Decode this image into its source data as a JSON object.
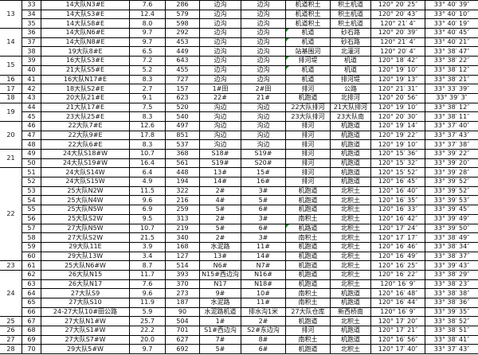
{
  "groups": [
    {
      "id": "13",
      "rows": [
        [
          "33",
          "14大队N3#E",
          "7.6",
          "286",
          "边沟",
          "边沟",
          "机道积土",
          "积土机道",
          "120° 20′ 25″",
          "33° 40′ 39″"
        ],
        [
          "34",
          "14大队S3#E",
          "12.4",
          "579",
          "边沟",
          "边沟",
          "机道积土",
          "积土机道",
          "120° 20′ 43″",
          "33° 40′ 10″"
        ],
        [
          "35",
          "14大队S8#E",
          "8.0",
          "598",
          "边沟",
          "边沟",
          "机道积土",
          "积土机道",
          "120° 21′ 4″",
          "33° 40′ 19″"
        ]
      ]
    },
    {
      "id": "14",
      "rows": [
        [
          "36",
          "14大队N6#E",
          "9.7",
          "292",
          "边沟",
          "边沟",
          "机道",
          "砂石路",
          "120° 20′ 39″",
          "33° 40′ 45″"
        ],
        [
          "37",
          "14大队N8#E",
          "9.7",
          "453",
          "边沟",
          "边沟",
          "机道",
          "砂石路",
          "120° 21′ 4″",
          "33° 40′ 21″"
        ],
        [
          "38",
          "19大队8#E",
          "6.5",
          "449",
          "边沟",
          "边沟",
          "站基围河",
          "北灌河",
          "120° 20′ 4″",
          "33° 38′ 47″"
        ]
      ]
    },
    {
      "id": "15",
      "rows": [
        [
          "39",
          "16大队S3#E",
          "7.2",
          "643",
          "边沟",
          "边沟",
          "排河堤",
          "机道",
          "120° 18′ 42″",
          "33° 38′ 22″"
        ],
        [
          "40",
          "21大队S5#E",
          "5.2",
          "455",
          "边沟",
          "边沟",
          "机道",
          "机道",
          "120° 19′ 10″",
          "33° 38′ 12″"
        ]
      ]
    },
    {
      "id": "16",
      "rows": [
        [
          "41",
          "16大队N17#E",
          "8.3",
          "727",
          "边沟",
          "边沟",
          "机道",
          "排河堤",
          "120° 19′ 13″",
          "33° 38′ 21″"
        ]
      ]
    },
    {
      "id": "17",
      "rows": [
        [
          "42",
          "18大队S2#E",
          "2.7",
          "157",
          "1#田",
          "2#田",
          "排河",
          "公路",
          "120° 21′ 31″",
          "33° 33′ 39″"
        ]
      ]
    },
    {
      "id": "18",
      "rows": [
        [
          "43",
          "20大队21#E",
          "9.1",
          "623",
          "22#",
          "21#",
          "机跑道",
          "北排河",
          "120° 20′ 56″",
          "33° 39′ 3″"
        ]
      ]
    },
    {
      "id": "19",
      "rows": [
        [
          "44",
          "21大队17#E",
          "7.5",
          "520",
          "沟边",
          "沟边",
          "22大队排河",
          "21大队排河",
          "120° 19′ 10″",
          "33° 38′ 12″"
        ],
        [
          "45",
          "23大队25#E",
          "8.3",
          "540",
          "沟边",
          "沟边",
          "23大队排河",
          "23大队南",
          "120° 20′ 30″",
          "33° 38′ 11″"
        ]
      ]
    },
    {
      "id": "20",
      "rows": [
        [
          "46",
          "22大队7#E",
          "12.6",
          "497",
          "沟边",
          "沟边",
          "排河",
          "机跑道",
          "120° 19′ 14″",
          "33° 37′ 40″"
        ],
        [
          "47",
          "22大队9#E",
          "17.8",
          "851",
          "沟边",
          "沟边",
          "排河",
          "机跑道",
          "120° 19′ 22″",
          "33° 37′ 43″"
        ],
        [
          "48",
          "22大队6#E",
          "8.3",
          "537",
          "沟边",
          "沟边",
          "排河",
          "机跑道",
          "120° 19′ 10″",
          "33° 37′ 38″"
        ]
      ]
    },
    {
      "id": "21",
      "rows": [
        [
          "49",
          "24大队S18#W",
          "10.7",
          "368",
          "S18#",
          "S19#",
          "排河",
          "机跑道",
          "120° 15′ 36″",
          "33° 39′ 22″"
        ],
        [
          "50",
          "24大队S19#W",
          "16.4",
          "561",
          "S19#",
          "S20#",
          "排河",
          "机跑道",
          "120° 15′ 32″",
          "33° 39′ 20″"
        ]
      ]
    },
    {
      "id": "22",
      "rows": [
        [
          "51",
          "24大队S14W",
          "6.4",
          "448",
          "13#",
          "15#",
          "排河",
          "机跑道",
          "120° 15′ 52″",
          "33° 39′ 28″"
        ],
        [
          "52",
          "24大队S15W",
          "4.9",
          "194",
          "14#",
          "16#",
          "排河",
          "机跑道",
          "120° 16′ 45″",
          "33° 39′ 52″"
        ],
        [
          "53",
          "25大队N2W",
          "11.5",
          "322",
          "2#",
          "3#",
          "机跑道",
          "北积土",
          "120° 16′ 40″",
          "33° 39′ 52″"
        ],
        [
          "54",
          "25大队N4W",
          "9.6",
          "216",
          "4#",
          "5#",
          "机跑道",
          "北积土",
          "120° 16′ 35″",
          "33° 39′ 53″"
        ],
        [
          "55",
          "25大队N5W",
          "6.9",
          "259",
          "5#",
          "6#",
          "机跑道",
          "北积土",
          "120° 16′ 33″",
          "33° 39′ 45″"
        ],
        [
          "56",
          "25大队S2W",
          "9.5",
          "313",
          "2#",
          "3#",
          "南积土",
          "北积土",
          "120° 16′ 42″",
          "33° 39′ 49″"
        ],
        [
          "57",
          "27大队N5W",
          "10.7",
          "219",
          "5#",
          "6#",
          "机路道",
          "北积土",
          "120° 17′ 24″",
          "33° 39′ 50″"
        ],
        [
          "58",
          "27大队S2W",
          "21.5",
          "340",
          "2#",
          "3#",
          "南积土",
          "北积土",
          "120° 17′ 17″",
          "33° 38′ 49″"
        ],
        [
          "59",
          "29大队11E",
          "3.9",
          "168",
          "水泥路",
          "11#",
          "机跑道",
          "北积土",
          "120° 16′ 46″",
          "33° 38′ 34″"
        ],
        [
          "60",
          "29大队13W",
          "3.4",
          "127",
          "13#",
          "14#",
          "机跑道",
          "北积土",
          "120° 16′ 49″",
          "33° 38′ 37″"
        ]
      ]
    },
    {
      "id": "23",
      "rows": [
        [
          "61",
          "25大队N6#W",
          "8.7",
          "514",
          "N6#",
          "N7#",
          "机跑道",
          "北积土",
          "120° 16′ 25″",
          "33° 39′ 43″"
        ]
      ]
    },
    {
      "id": "24",
      "rows": [
        [
          "62",
          "26大队N15",
          "11.7",
          "393",
          "N15#西边沟",
          "N16#",
          "机跑道",
          "北积土",
          "120° 16′ 22″",
          "33° 38′ 29″"
        ],
        [
          "63",
          "26大队N17",
          "7.6",
          "370",
          "N17",
          "N18#",
          "机跑道",
          "北积土",
          "120° 16′ 9″",
          "33° 38′ 23″"
        ],
        [
          "64",
          "27大队S9",
          "9.6",
          "273",
          "9#",
          "10#",
          "南积土",
          "机跑道",
          "120° 16′ 48″",
          "33° 38′ 38″"
        ],
        [
          "65",
          "27大队S10",
          "11.9",
          "187",
          "水泥路",
          "11#",
          "南积土",
          "机跑道",
          "120° 16′ 44″",
          "33° 38′ 36″"
        ],
        [
          "66",
          "24-27大队10#田公路",
          "5.9",
          "90",
          "水泥路机道",
          "排水沟1米",
          "27大队仓库",
          "新西桥南",
          "120° 16′ 9″",
          "33° 39′ 35″"
        ]
      ]
    },
    {
      "id": "25",
      "rows": [
        [
          "67",
          "27大队N1#W",
          "25.7",
          "504",
          "1#",
          "2#",
          "机跑道",
          "北积土",
          "120° 17′ 20″",
          "33° 38′ 52″"
        ]
      ]
    },
    {
      "id": "26",
      "rows": [
        [
          "68",
          "27大队S1#W",
          "22.2",
          "701",
          "S1#西边沟",
          "S2#东边沟",
          "排河",
          "机跑道",
          "120° 17′ 21″",
          "33° 38′ 51″"
        ]
      ]
    },
    {
      "id": "27",
      "rows": [
        [
          "69",
          "27大队S7#W",
          "20.0",
          "627",
          "7#",
          "8#",
          "南积土",
          "机跑道",
          "120° 16′ 56″",
          "33° 38′ 41″"
        ]
      ]
    },
    {
      "id": "28",
      "rows": [
        [
          "70",
          "29大队5#W",
          "9.7",
          "692",
          "5#",
          "6#",
          "机跑道",
          "北积土",
          "120° 17′ 40″",
          "33° 37′ 43″"
        ]
      ]
    }
  ],
  "comment_marker_rows": [
    "36",
    "37",
    "39",
    "40",
    "57"
  ],
  "colors": {
    "grid": "#000000",
    "comment_marker": "#2a8a2a"
  }
}
